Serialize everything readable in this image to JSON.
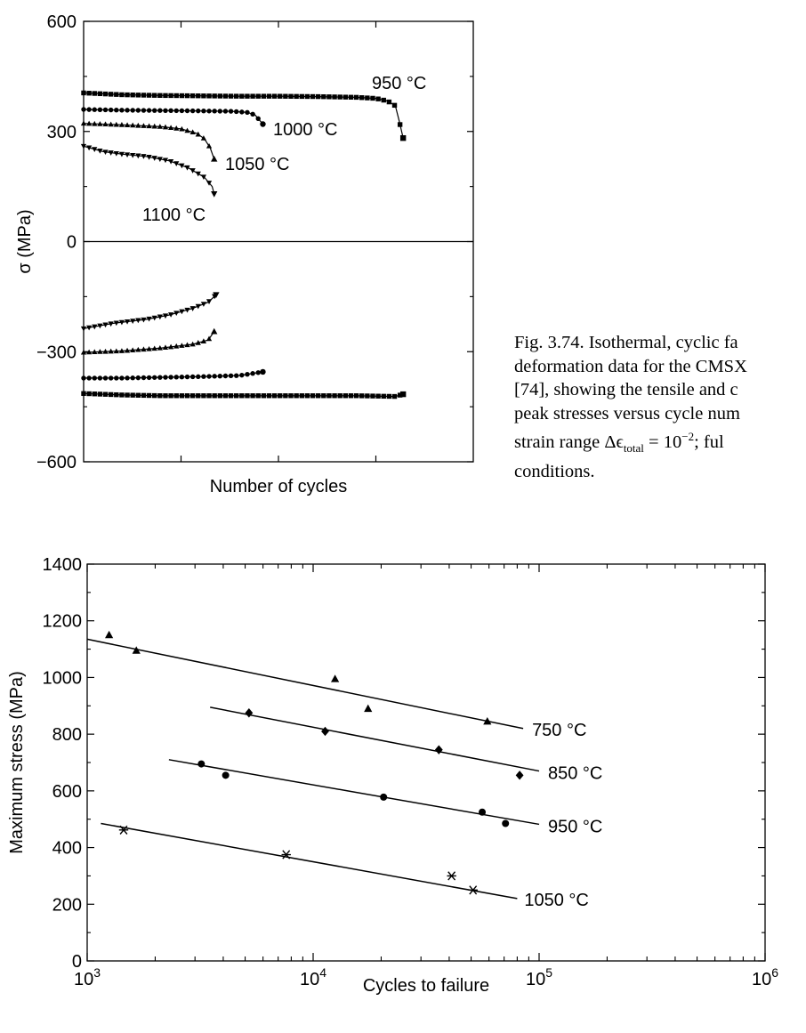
{
  "colors": {
    "ink": "#000000",
    "background": "#ffffff"
  },
  "caption": {
    "lines": [
      "Fig. 3.74. Isothermal, cyclic fa",
      "deformation data for the CMSX",
      "[74], showing the tensile and c",
      "peak stresses versus cycle num",
      "strain range Δϵ",
      "conditions."
    ],
    "strain_sub": "total",
    "strain_tail": " = 10",
    "strain_exp": "−2",
    "strain_after": "; ful"
  },
  "chart_data": [
    {
      "type": "line",
      "xlabel": "Number of cycles",
      "ylabel": "σ (MPa)",
      "ylim": [
        -600,
        600
      ],
      "yticks": [
        600,
        300,
        0,
        -300,
        -600
      ],
      "ytick_labels": [
        "600",
        "300",
        "0",
        "−300",
        "−600"
      ],
      "xlim": [
        0,
        100
      ],
      "x_ticks_unlabeled": [
        25,
        50,
        75
      ],
      "note": "x axis has no numeric tick labels; x values are relative positions along the unlabeled cycle axis (0–100)",
      "series": [
        {
          "name": "950 °C",
          "marker": "square",
          "tension": {
            "x": [
              0,
              10,
              20,
              30,
              40,
              50,
              60,
              70,
              75,
              78,
              80,
              81,
              82
            ],
            "y": [
              405,
              400,
              398,
              397,
              396,
              396,
              395,
              393,
              390,
              383,
              370,
              328,
              282
            ]
          },
          "compression": {
            "x": [
              0,
              10,
              20,
              30,
              40,
              50,
              60,
              70,
              80,
              82
            ],
            "y": [
              -414,
              -418,
              -420,
              -420,
              -420,
              -420,
              -420,
              -420,
              -422,
              -416
            ]
          }
        },
        {
          "name": "1000 °C",
          "marker": "circle",
          "tension": {
            "x": [
              0,
              10,
              20,
              30,
              38,
              42,
              44,
              46
            ],
            "y": [
              360,
              358,
              357,
              356,
              355,
              352,
              345,
              320
            ]
          },
          "compression": {
            "x": [
              0,
              10,
              20,
              30,
              40,
              46
            ],
            "y": [
              -372,
              -372,
              -370,
              -368,
              -365,
              -355
            ]
          }
        },
        {
          "name": "1050 °C",
          "marker": "triangle",
          "tension": {
            "x": [
              0,
              10,
              20,
              25,
              29,
              31,
              32.5,
              33.5
            ],
            "y": [
              322,
              318,
              313,
              307,
              295,
              280,
              255,
              225
            ]
          },
          "compression": {
            "x": [
              0,
              10,
              20,
              28,
              32,
              33.5
            ],
            "y": [
              -302,
              -298,
              -290,
              -280,
              -268,
              -245
            ]
          }
        },
        {
          "name": "1100 °C",
          "marker": "triangle-down",
          "tension": {
            "x": [
              0,
              5,
              10,
              16,
              22,
              27,
              31,
              33,
              33.5
            ],
            "y": [
              260,
              245,
              238,
              232,
              220,
              200,
              175,
              150,
              130
            ]
          },
          "compression": {
            "x": [
              0,
              8,
              16,
              22,
              28,
              32,
              34
            ],
            "y": [
              -237,
              -222,
              -212,
              -200,
              -182,
              -165,
              -145
            ]
          }
        }
      ]
    },
    {
      "type": "scatter",
      "xlabel": "Cycles to failure",
      "ylabel": "Maximum stress (MPa)",
      "xscale": "log",
      "xlim": [
        1000,
        1000000
      ],
      "xtick_labels": [
        "10",
        "10",
        "10",
        "10"
      ],
      "xtick_exponents": [
        "3",
        "4",
        "5",
        "6"
      ],
      "ylim": [
        0,
        1400
      ],
      "yticks": [
        0,
        200,
        400,
        600,
        800,
        1000,
        1200,
        1400
      ],
      "ytick_labels": [
        "0",
        "200",
        "400",
        "600",
        "800",
        "1000",
        "1200",
        "1400"
      ],
      "series": [
        {
          "name": "750 °C",
          "marker": "triangle",
          "points": {
            "x": [
              1250,
              1650,
              12500,
              17500,
              59000
            ],
            "y": [
              1150,
              1095,
              995,
              890,
              845
            ]
          },
          "fit": {
            "x": [
              1000,
              85000
            ],
            "y": [
              1135,
              820
            ]
          }
        },
        {
          "name": "850 °C",
          "marker": "diamond",
          "points": {
            "x": [
              5200,
              11300,
              36000,
              82000
            ],
            "y": [
              875,
              810,
              745,
              655
            ]
          },
          "fit": {
            "x": [
              3500,
              100000
            ],
            "y": [
              895,
              670
            ]
          }
        },
        {
          "name": "950 °C",
          "marker": "circle",
          "points": {
            "x": [
              3200,
              4100,
              20500,
              56000,
              71000
            ],
            "y": [
              695,
              655,
              578,
              525,
              485
            ]
          },
          "fit": {
            "x": [
              2300,
              100000
            ],
            "y": [
              710,
              482
            ]
          }
        },
        {
          "name": "1050 °C",
          "marker": "star",
          "points": {
            "x": [
              1450,
              7600,
              41000,
              51000
            ],
            "y": [
              462,
              375,
              300,
              250
            ]
          },
          "fit": {
            "x": [
              1150,
              80000
            ],
            "y": [
              485,
              220
            ]
          }
        }
      ]
    }
  ]
}
